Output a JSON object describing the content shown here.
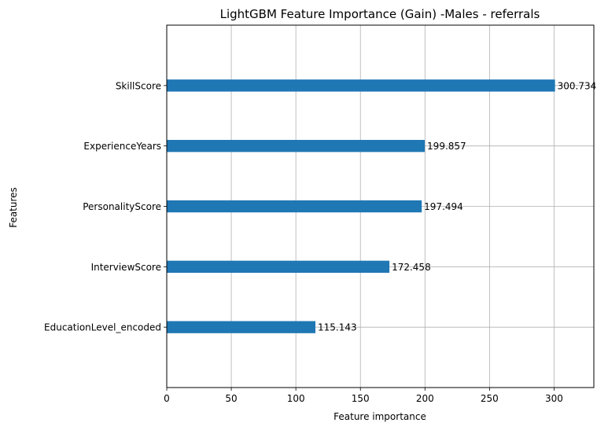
{
  "chart_data": {
    "type": "bar",
    "orientation": "horizontal",
    "title": "LightGBM Feature Importance (Gain) -Males - referrals",
    "xlabel": "Feature importance",
    "ylabel": "Features",
    "categories": [
      "EducationLevel_encoded",
      "InterviewScore",
      "PersonalityScore",
      "ExperienceYears",
      "SkillScore"
    ],
    "values": [
      115.143,
      172.458,
      197.494,
      199.857,
      300.734
    ],
    "value_labels": [
      "115.143",
      "172.458",
      "197.494",
      "199.857",
      "300.734"
    ],
    "xlim": [
      0,
      330.8
    ],
    "xticks": [
      0,
      50,
      100,
      150,
      200,
      250,
      300
    ],
    "grid": true,
    "bar_color": "#1f77b4"
  }
}
